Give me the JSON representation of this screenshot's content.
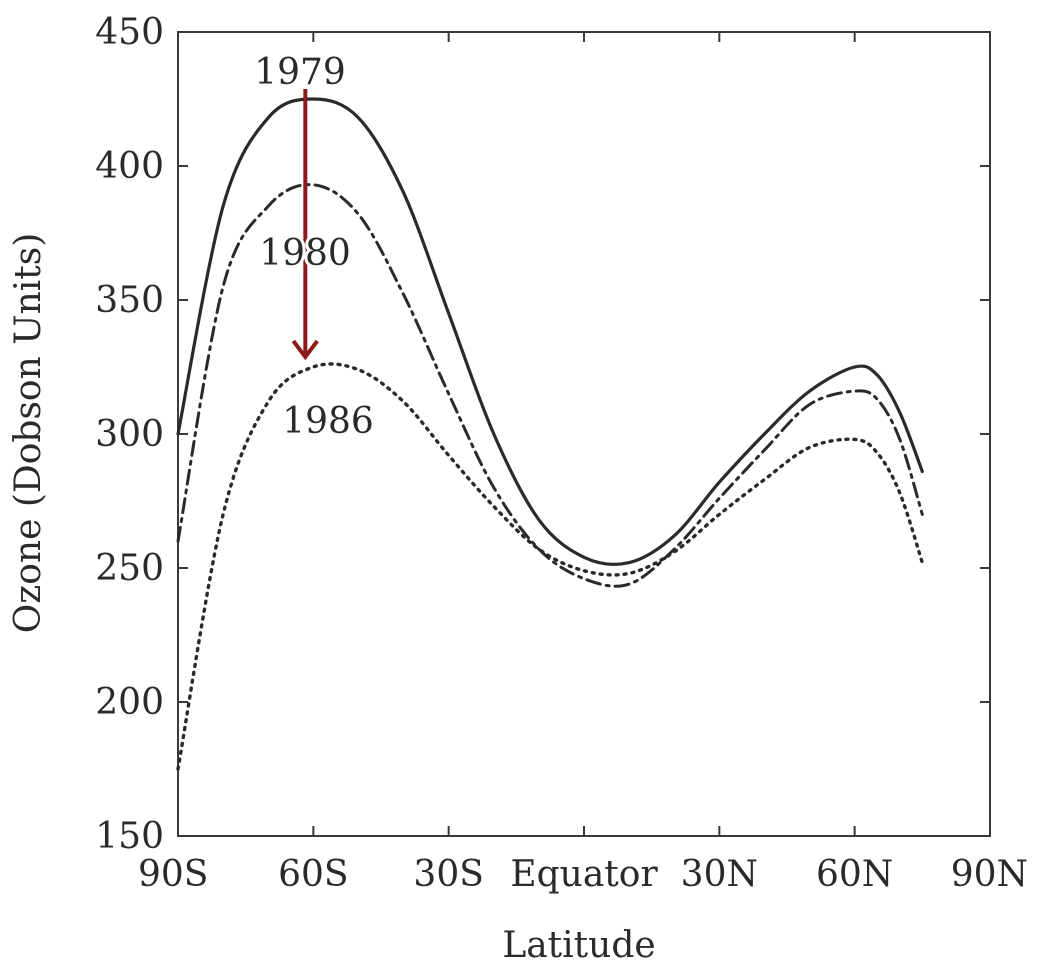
{
  "chart_data": {
    "type": "line",
    "xlabel": "Latitude",
    "ylabel": "Ozone (Dobson Units)",
    "ylim": [
      150,
      450
    ],
    "xlim": [
      -90,
      90
    ],
    "x_ticks": [
      {
        "value": -90,
        "label": "90S"
      },
      {
        "value": -60,
        "label": "60S"
      },
      {
        "value": -30,
        "label": "30S"
      },
      {
        "value": 0,
        "label": "Equator"
      },
      {
        "value": 30,
        "label": "30N"
      },
      {
        "value": 60,
        "label": "60N"
      },
      {
        "value": 90,
        "label": "90N"
      }
    ],
    "y_ticks": [
      150,
      200,
      250,
      300,
      350,
      400,
      450
    ],
    "grid": false,
    "x": [
      -90,
      -80,
      -70,
      -60,
      -50,
      -40,
      -30,
      -20,
      -10,
      0,
      10,
      20,
      30,
      40,
      50,
      60,
      65,
      70,
      75
    ],
    "series": [
      {
        "name": "1979",
        "style": "solid",
        "values": [
          300,
          385,
          418,
          425,
          418,
          390,
          345,
          300,
          268,
          254,
          252,
          262,
          282,
          300,
          316,
          325,
          322,
          308,
          286
        ]
      },
      {
        "name": "1980",
        "style": "dash-dot",
        "values": [
          260,
          355,
          385,
          393,
          382,
          352,
          315,
          280,
          257,
          246,
          244,
          257,
          276,
          294,
          311,
          316,
          313,
          298,
          270
        ]
      },
      {
        "name": "1986",
        "style": "dotted",
        "values": [
          175,
          270,
          312,
          325,
          324,
          312,
          292,
          273,
          257,
          249,
          248,
          256,
          270,
          283,
          295,
          298,
          293,
          278,
          252
        ]
      }
    ],
    "annotations": [
      {
        "type": "arrow",
        "color": "#8b1a1a",
        "from": {
          "x": -60,
          "y": 425
        },
        "to": {
          "x": -60,
          "y": 328
        }
      }
    ],
    "colors": {
      "lines": "#2a2a2a",
      "axis": "#3a3a3a",
      "arrow": "#8b1a1a"
    }
  }
}
